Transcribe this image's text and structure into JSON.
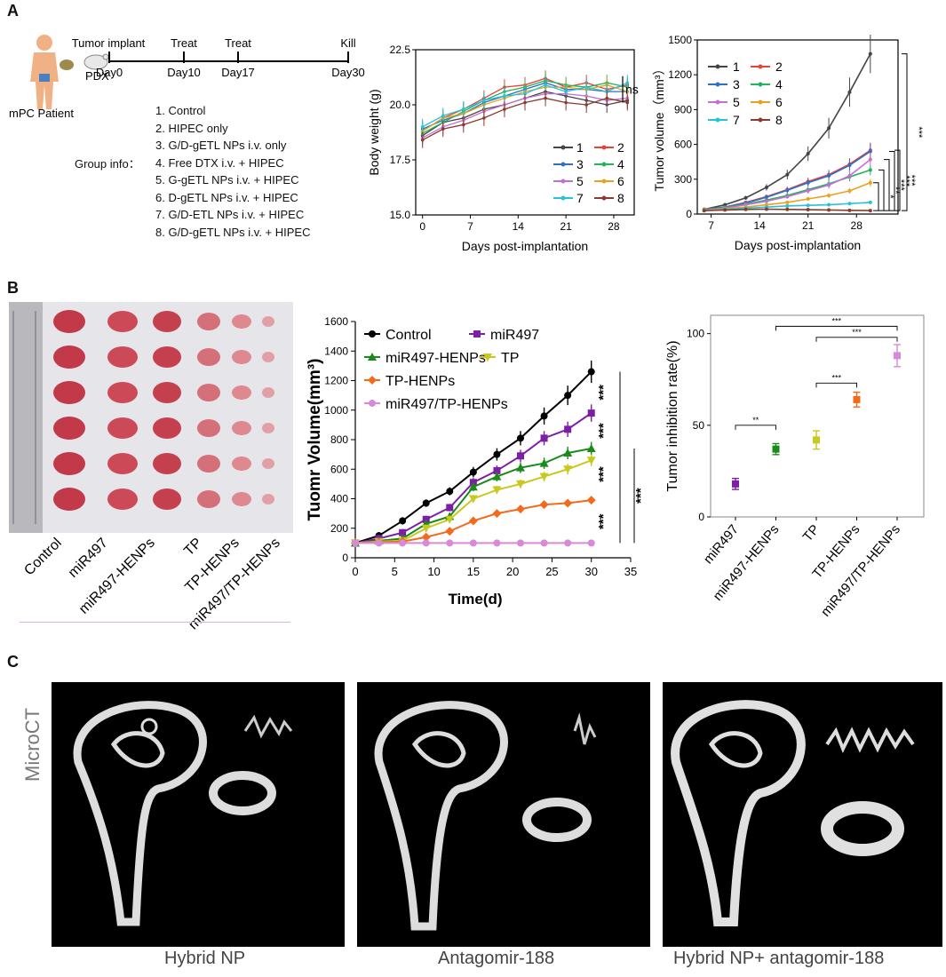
{
  "panel_labels": {
    "a": "A",
    "b": "B",
    "c": "C"
  },
  "timeline": {
    "patient": "mPC Patient",
    "pdx": "PDX",
    "events": [
      {
        "top": "Tumor implant",
        "bottom": "Day0"
      },
      {
        "top": "Treat",
        "bottom": "Day10"
      },
      {
        "top": "Treat",
        "bottom": "Day17"
      },
      {
        "top": "Kill",
        "bottom": "Day30"
      }
    ]
  },
  "groups": {
    "title": "Group info：",
    "items": [
      "1. Control",
      "2. HIPEC only",
      "3. G/D-gETL NPs i.v. only",
      "4. Free DTX i.v. + HIPEC",
      "5. G-gETL NPs i.v. + HIPEC",
      "6. D-gETL NPs i.v. + HIPEC",
      "7. G/D-ETL NPs i.v. + HIPEC",
      "8. G/D-gETL NPs i.v. + HIPEC"
    ]
  },
  "colors": {
    "g1": "#444444",
    "g2": "#e8413a",
    "g3": "#2f6fc4",
    "g4": "#22b45a",
    "g5": "#c56fd6",
    "g6": "#e8a21e",
    "g7": "#26c2d6",
    "g8": "#8a3a2e"
  },
  "chart_data": [
    {
      "type": "line",
      "title": "",
      "xlabel": "Days post-implantation",
      "ylabel": "Body weight (g)",
      "xlim": [
        -1,
        31
      ],
      "ylim": [
        15,
        22.5
      ],
      "xticks": [
        "0",
        "7",
        "14",
        "21",
        "28"
      ],
      "yticks": [
        "15.0",
        "17.5",
        "20.0",
        "22.5"
      ],
      "annotation": "ns",
      "x": [
        0,
        3,
        6,
        9,
        12,
        15,
        18,
        21,
        24,
        27,
        30
      ],
      "series": [
        {
          "name": "1",
          "values": [
            18.6,
            19.2,
            19.4,
            19.8,
            20.0,
            20.3,
            20.6,
            20.4,
            20.2,
            20.0,
            20.2
          ]
        },
        {
          "name": "2",
          "values": [
            18.8,
            19.4,
            19.8,
            20.3,
            20.8,
            20.9,
            21.2,
            20.8,
            21.0,
            20.7,
            20.9
          ]
        },
        {
          "name": "3",
          "values": [
            18.9,
            19.3,
            19.6,
            20.1,
            20.4,
            20.7,
            21.0,
            20.7,
            20.7,
            20.6,
            20.6
          ]
        },
        {
          "name": "4",
          "values": [
            18.7,
            19.2,
            19.7,
            20.2,
            20.6,
            20.8,
            21.1,
            20.9,
            20.8,
            21.0,
            20.8
          ]
        },
        {
          "name": "5",
          "values": [
            18.5,
            19.0,
            19.3,
            19.7,
            20.0,
            20.3,
            20.5,
            20.5,
            20.4,
            20.2,
            20.3
          ]
        },
        {
          "name": "6",
          "values": [
            18.8,
            19.4,
            19.6,
            20.0,
            20.3,
            20.6,
            20.8,
            20.8,
            20.7,
            20.9,
            20.6
          ]
        },
        {
          "name": "7",
          "values": [
            19.0,
            19.5,
            19.8,
            20.2,
            20.4,
            20.5,
            20.9,
            20.6,
            20.8,
            20.6,
            21.0
          ]
        },
        {
          "name": "8",
          "values": [
            18.4,
            18.9,
            19.1,
            19.4,
            19.8,
            20.1,
            20.3,
            20.1,
            20.0,
            20.3,
            20.1
          ]
        }
      ]
    },
    {
      "type": "line",
      "title": "",
      "xlabel": "Days post-implantation",
      "ylabel": "Tumor volume（mm³）",
      "xlim": [
        5,
        34
      ],
      "ylim": [
        0,
        1500
      ],
      "xticks": [
        "7",
        "14",
        "21",
        "28"
      ],
      "yticks": [
        "0",
        "300",
        "600",
        "900",
        "1200",
        "1500"
      ],
      "sig": [
        "***",
        "***",
        "***",
        "***",
        "**",
        "*"
      ],
      "x": [
        6,
        9,
        12,
        15,
        18,
        21,
        24,
        27,
        30
      ],
      "series": [
        {
          "name": "1",
          "values": [
            40,
            80,
            140,
            230,
            340,
            520,
            740,
            1050,
            1380
          ]
        },
        {
          "name": "2",
          "values": [
            40,
            60,
            100,
            150,
            210,
            280,
            340,
            430,
            550
          ]
        },
        {
          "name": "3",
          "values": [
            40,
            60,
            95,
            145,
            205,
            270,
            330,
            420,
            540
          ]
        },
        {
          "name": "4",
          "values": [
            35,
            55,
            85,
            120,
            160,
            210,
            260,
            320,
            380
          ]
        },
        {
          "name": "5",
          "values": [
            35,
            50,
            80,
            110,
            150,
            200,
            250,
            330,
            470
          ]
        },
        {
          "name": "6",
          "values": [
            35,
            45,
            60,
            80,
            100,
            130,
            160,
            200,
            270
          ]
        },
        {
          "name": "7",
          "values": [
            30,
            40,
            50,
            60,
            70,
            75,
            80,
            90,
            100
          ]
        },
        {
          "name": "8",
          "values": [
            30,
            35,
            40,
            42,
            40,
            38,
            35,
            32,
            30
          ]
        }
      ]
    },
    {
      "type": "line",
      "title": "",
      "xlabel": "Time(d)",
      "ylabel": "Tuomr Volume(mm³)",
      "xlim": [
        0,
        35
      ],
      "ylim": [
        0,
        1600
      ],
      "xticks": [
        "0",
        "5",
        "10",
        "15",
        "20",
        "25",
        "30",
        "35"
      ],
      "yticks": [
        "0",
        "200",
        "400",
        "600",
        "800",
        "1000",
        "1200",
        "1400",
        "1600"
      ],
      "sig": [
        "***",
        "***",
        "***",
        "***",
        "***"
      ],
      "x": [
        0,
        3,
        6,
        9,
        12,
        15,
        18,
        21,
        24,
        27,
        30
      ],
      "series": [
        {
          "name": "Control",
          "color": "#000000",
          "marker": "circle",
          "values": [
            100,
            150,
            250,
            370,
            450,
            580,
            700,
            810,
            960,
            1100,
            1260
          ]
        },
        {
          "name": "miR497",
          "color": "#7d1fa5",
          "marker": "square",
          "values": [
            100,
            130,
            170,
            260,
            340,
            510,
            590,
            690,
            810,
            870,
            980
          ]
        },
        {
          "name": "miR497-HENPs",
          "color": "#1a8a1a",
          "marker": "triangle",
          "values": [
            100,
            115,
            130,
            230,
            280,
            480,
            550,
            610,
            640,
            710,
            740
          ]
        },
        {
          "name": "TP",
          "color": "#c8c81e",
          "marker": "triangle-down",
          "values": [
            100,
            110,
            115,
            200,
            260,
            400,
            460,
            500,
            550,
            600,
            660
          ]
        },
        {
          "name": "TP-HENPs",
          "color": "#f26b1d",
          "marker": "diamond",
          "values": [
            100,
            105,
            110,
            140,
            180,
            250,
            300,
            330,
            360,
            370,
            390
          ]
        },
        {
          "name": "miR497/TP-HENPs",
          "color": "#d78ad8",
          "marker": "circle",
          "values": [
            100,
            100,
            100,
            100,
            100,
            100,
            100,
            100,
            100,
            100,
            100
          ]
        }
      ]
    },
    {
      "type": "scatter",
      "title": "",
      "xlabel": "",
      "ylabel": "Tumor inhibition rate(%)",
      "ylim": [
        0,
        110
      ],
      "yticks": [
        "0",
        "50",
        "100"
      ],
      "categories": [
        "miR497",
        "miR497-HENPs",
        "TP",
        "TP-HENPs",
        "miR497/TP-HENPs"
      ],
      "values": [
        18,
        37,
        42,
        64,
        88
      ],
      "errors": [
        3,
        3,
        5,
        4,
        6
      ],
      "colors": [
        "#7d1fa5",
        "#1a8a1a",
        "#c8c81e",
        "#f26b1d",
        "#d78ad8"
      ],
      "brackets": [
        {
          "from": "miR497",
          "to": "miR497-HENPs",
          "label": "**"
        },
        {
          "from": "TP",
          "to": "TP-HENPs",
          "label": "***"
        },
        {
          "from": "TP",
          "to": "miR497/TP-HENPs",
          "label": "***"
        },
        {
          "from": "miR497-HENPs",
          "to": "miR497/TP-HENPs",
          "label": "***"
        }
      ]
    }
  ],
  "photo": {
    "labels": [
      "Control",
      "miR497",
      "miR497-HENPs",
      "TP",
      "TP-HENPs",
      "miR497/TP-HENPs"
    ]
  },
  "microct": {
    "side_label": "MicroCT",
    "captions": [
      "Hybrid NP",
      "Antagomir-188",
      "Hybrid NP+ antagomir-188"
    ]
  }
}
